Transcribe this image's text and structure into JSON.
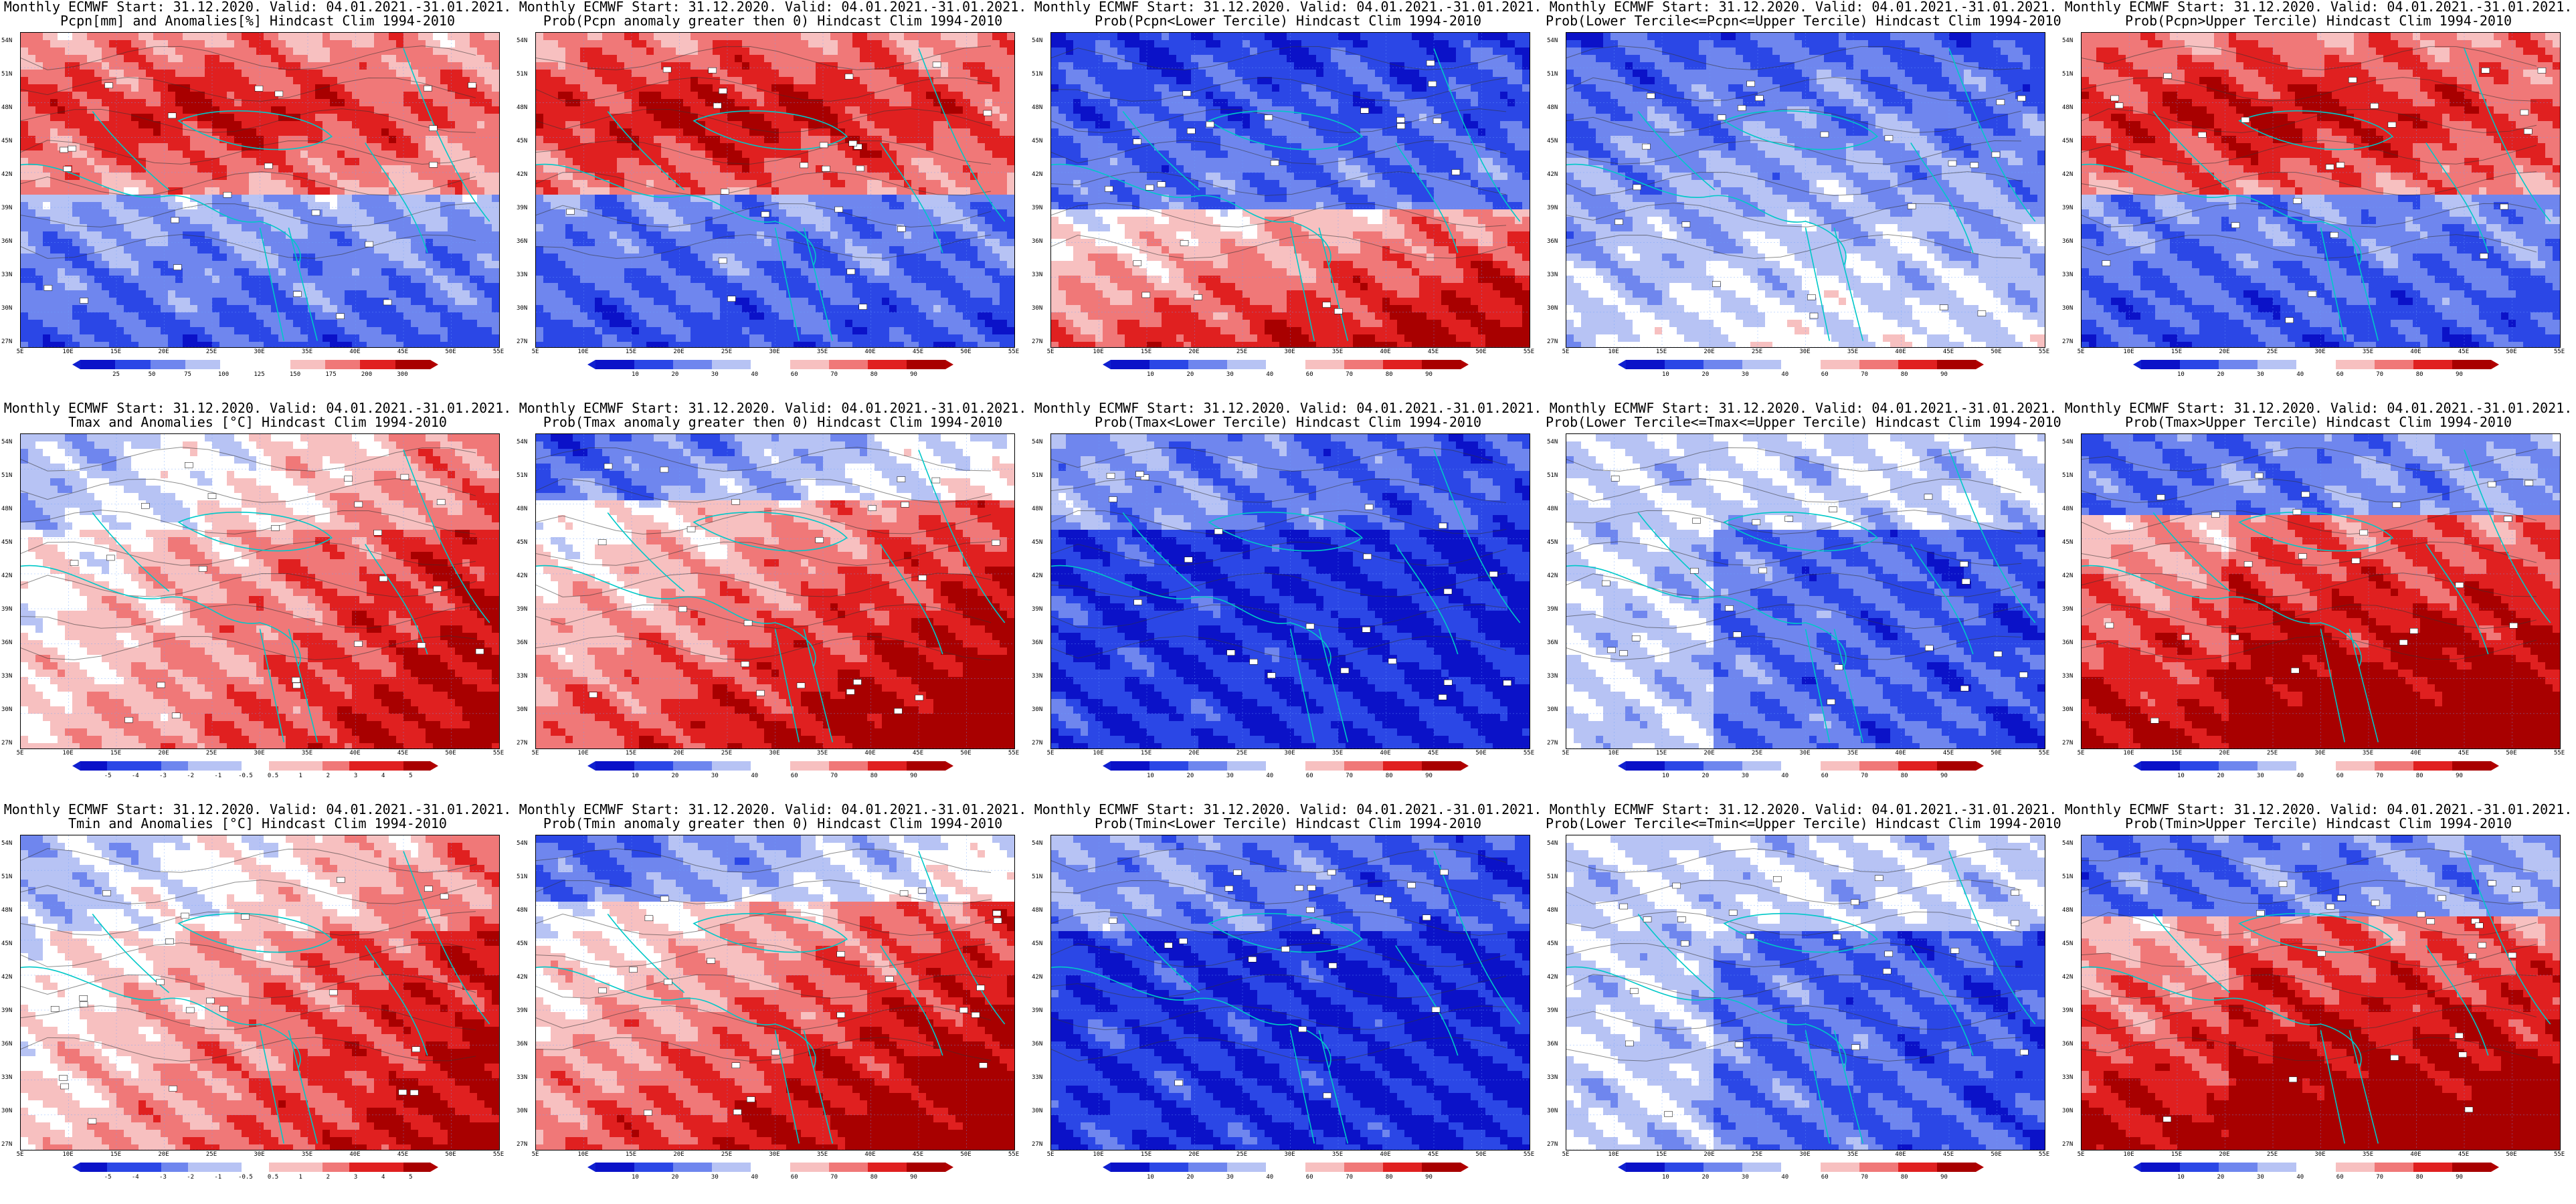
{
  "colors": {
    "deep_blue": "#0b12c8",
    "blue": "#2b47e6",
    "mid_blue": "#6f86ee",
    "light_blue": "#b7c3f4",
    "white": "#ffffff",
    "light_red": "#f7c0c0",
    "mid_red": "#f07878",
    "red": "#e02020",
    "dark_red": "#a80000",
    "coast": "#00c8c8",
    "contour": "#333333"
  },
  "lat_labels": [
    "54N",
    "51N",
    "48N",
    "45N",
    "42N",
    "39N",
    "36N",
    "33N",
    "30N",
    "27N"
  ],
  "lon_labels": [
    "5E",
    "10E",
    "15E",
    "20E",
    "25E",
    "30E",
    "35E",
    "40E",
    "45E",
    "50E",
    "55E"
  ],
  "scales": {
    "pcpn_anom": [
      "25",
      "50",
      "75",
      "100",
      "125",
      "150",
      "175",
      "200",
      "300"
    ],
    "prob": [
      "10",
      "20",
      "30",
      "40",
      "60",
      "70",
      "80",
      "90"
    ],
    "temp_anom": [
      "-5",
      "-4",
      "-3",
      "-2",
      "-1",
      "-0.5",
      "0.5",
      "1",
      "2",
      "3",
      "4",
      "5"
    ]
  },
  "panels": [
    {
      "title1": "Monthly ECMWF Start: 31.12.2020. Valid: 04.01.2021.-31.01.2021.",
      "title2": "Pcpn[mm] and Anomalies[%] Hindcast Clim 1994-2010",
      "scale": "pcpn_anom",
      "pattern": "pcpn_anom"
    },
    {
      "title1": "Monthly ECMWF Start: 31.12.2020. Valid: 04.01.2021.-31.01.2021.",
      "title2": "Prob(Pcpn anomaly greater then 0) Hindcast Clim 1994-2010",
      "scale": "prob",
      "pattern": "pcpn_pos"
    },
    {
      "title1": "Monthly ECMWF Start: 31.12.2020. Valid: 04.01.2021.-31.01.2021.",
      "title2": "Prob(Pcpn<Lower Tercile) Hindcast Clim 1994-2010",
      "scale": "prob",
      "pattern": "pcpn_low"
    },
    {
      "title1": "Monthly ECMWF Start: 31.12.2020. Valid: 04.01.2021.-31.01.2021.",
      "title2": "Prob(Lower Tercile<=Pcpn<=Upper Tercile) Hindcast Clim 1994-2010",
      "scale": "prob",
      "pattern": "pcpn_mid"
    },
    {
      "title1": "Monthly ECMWF Start: 31.12.2020. Valid: 04.01.2021.-31.01.2021.",
      "title2": "Prob(Pcpn>Upper Tercile) Hindcast Clim 1994-2010",
      "scale": "prob",
      "pattern": "pcpn_pos"
    },
    {
      "title1": "Monthly ECMWF Start: 31.12.2020. Valid: 04.01.2021.-31.01.2021.",
      "title2": "Tmax and Anomalies [°C] Hindcast Clim 1994-2010",
      "scale": "temp_anom",
      "pattern": "t_anom"
    },
    {
      "title1": "Monthly ECMWF Start: 31.12.2020. Valid: 04.01.2021.-31.01.2021.",
      "title2": "Prob(Tmax anomaly greater then 0) Hindcast Clim 1994-2010",
      "scale": "prob",
      "pattern": "t_pos"
    },
    {
      "title1": "Monthly ECMWF Start: 31.12.2020. Valid: 04.01.2021.-31.01.2021.",
      "title2": "Prob(Tmax<Lower Tercile) Hindcast Clim 1994-2010",
      "scale": "prob",
      "pattern": "t_low"
    },
    {
      "title1": "Monthly ECMWF Start: 31.12.2020. Valid: 04.01.2021.-31.01.2021.",
      "title2": "Prob(Lower Tercile<=Tmax<=Upper Tercile) Hindcast Clim 1994-2010",
      "scale": "prob",
      "pattern": "t_mid"
    },
    {
      "title1": "Monthly ECMWF Start: 31.12.2020. Valid: 04.01.2021.-31.01.2021.",
      "title2": "Prob(Tmax>Upper Tercile) Hindcast Clim 1994-2010",
      "scale": "prob",
      "pattern": "t_up"
    },
    {
      "title1": "Monthly ECMWF Start: 31.12.2020. Valid: 04.01.2021.-31.01.2021.",
      "title2": "Tmin and Anomalies [°C] Hindcast Clim 1994-2010",
      "scale": "temp_anom",
      "pattern": "t_anom"
    },
    {
      "title1": "Monthly ECMWF Start: 31.12.2020. Valid: 04.01.2021.-31.01.2021.",
      "title2": "Prob(Tmin anomaly greater then 0) Hindcast Clim 1994-2010",
      "scale": "prob",
      "pattern": "t_pos"
    },
    {
      "title1": "Monthly ECMWF Start: 31.12.2020. Valid: 04.01.2021.-31.01.2021.",
      "title2": "Prob(Tmin<Lower Tercile) Hindcast Clim 1994-2010",
      "scale": "prob",
      "pattern": "t_low"
    },
    {
      "title1": "Monthly ECMWF Start: 31.12.2020. Valid: 04.01.2021.-31.01.2021.",
      "title2": "Prob(Lower Tercile<=Tmin<=Upper Tercile) Hindcast Clim 1994-2010",
      "scale": "prob",
      "pattern": "t_mid"
    },
    {
      "title1": "Monthly ECMWF Start: 31.12.2020. Valid: 04.01.2021.-31.01.2021.",
      "title2": "Prob(Tmin>Upper Tercile) Hindcast Clim 1994-2010",
      "scale": "prob",
      "pattern": "t_up"
    }
  ]
}
